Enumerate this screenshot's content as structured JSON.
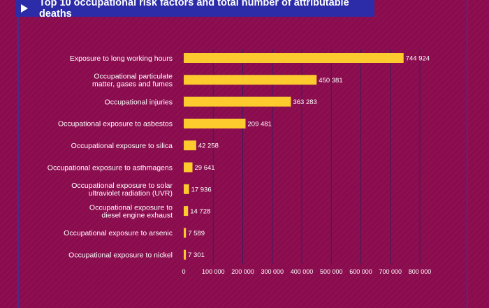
{
  "chart_data": {
    "type": "bar",
    "orientation": "horizontal",
    "title": "Top 10 occupational risk factors and total number of attributable deaths",
    "categories": [
      [
        "Exposure to long working hours"
      ],
      [
        "Occupational particulate",
        "matter, gases and fumes"
      ],
      [
        "Occupational injuries"
      ],
      [
        "Occupational exposure to asbestos"
      ],
      [
        "Occupational exposure to silica"
      ],
      [
        "Occupational exposure to asthmagens"
      ],
      [
        "Occupational exposure to solar",
        "ultraviolet radiation (UVR)"
      ],
      [
        "Occupational exposure to",
        "diesel engine exhaust"
      ],
      [
        "Occupational exposure to arsenic"
      ],
      [
        "Occupational exposure to nickel"
      ]
    ],
    "values": [
      744924,
      450381,
      363283,
      209481,
      42258,
      29641,
      17936,
      14728,
      7589,
      7301
    ],
    "value_labels": [
      "744 924",
      "450 381",
      "363 283",
      "209 481",
      "42 258",
      "29 641",
      "17 936",
      "14 728",
      "7 589",
      "7 301"
    ],
    "xlim": [
      0,
      800000
    ],
    "xticks": [
      0,
      100000,
      200000,
      300000,
      400000,
      500000,
      600000,
      700000,
      800000
    ],
    "xtick_labels": [
      "0",
      "100 000",
      "200 000",
      "300 000",
      "400 000",
      "500 000",
      "600 000",
      "700 000",
      "800 000"
    ],
    "grid": true,
    "bar_color": "#fdcb2e",
    "grid_color": "#3d1b5c"
  },
  "colors": {
    "background": "#8a0c4e",
    "title_bar": "#2c2ba8",
    "title_text": "#ffffff"
  },
  "icons": {
    "title_marker": "play-icon"
  }
}
